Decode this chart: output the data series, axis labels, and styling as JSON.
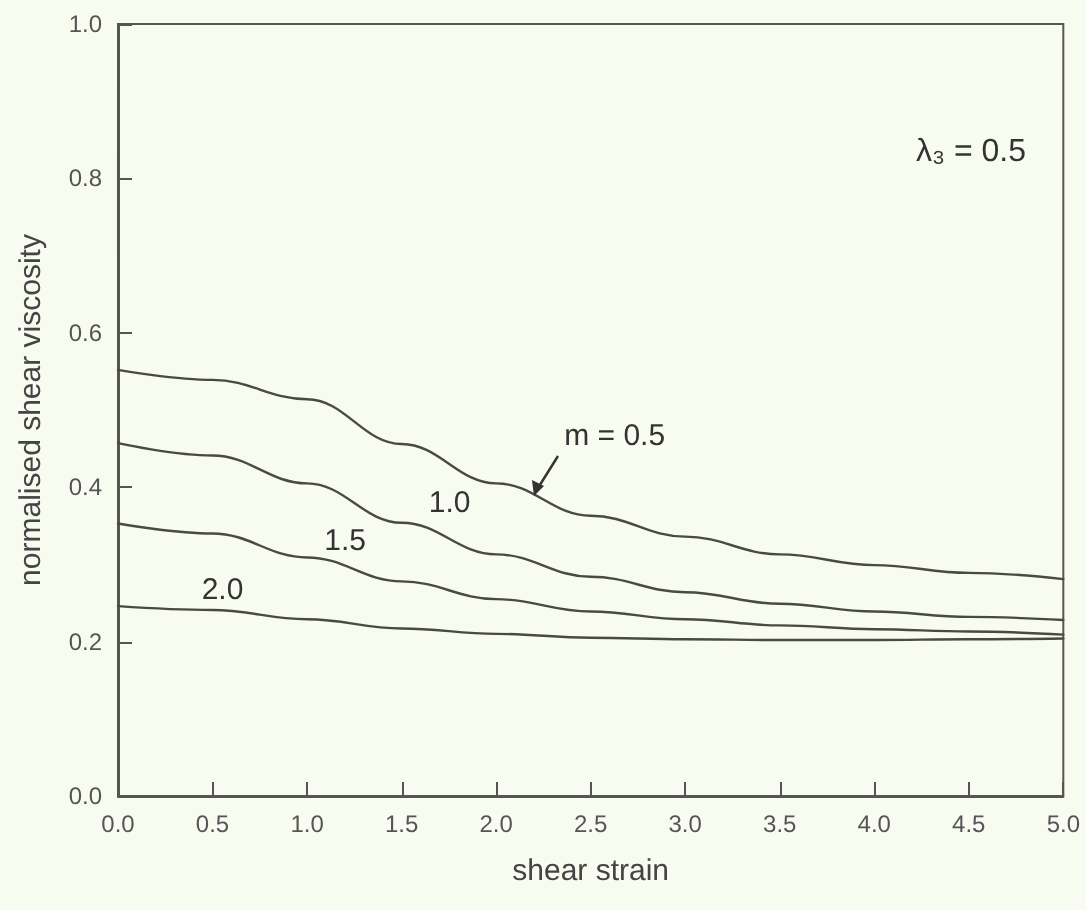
{
  "chart_data": {
    "type": "line",
    "xlabel": "shear strain",
    "ylabel": "normalised shear viscosity",
    "annotations": [
      "λ₃ = 0.5"
    ],
    "x": [
      0,
      0.5,
      1.0,
      1.5,
      2.0,
      2.5,
      3.0,
      3.5,
      4.0,
      4.5,
      5.0
    ],
    "series": [
      {
        "name": "m = 0.5",
        "color": "#4a4a44",
        "values": [
          0.552,
          0.539,
          0.514,
          0.456,
          0.405,
          0.363,
          0.336,
          0.313,
          0.299,
          0.289,
          0.281
        ]
      },
      {
        "name": "1.0",
        "color": "#4a4a44",
        "values": [
          0.457,
          0.441,
          0.405,
          0.354,
          0.313,
          0.284,
          0.264,
          0.249,
          0.239,
          0.232,
          0.228
        ]
      },
      {
        "name": "1.5",
        "color": "#4a4a44",
        "values": [
          0.353,
          0.34,
          0.309,
          0.278,
          0.255,
          0.239,
          0.229,
          0.221,
          0.216,
          0.213,
          0.209
        ]
      },
      {
        "name": "2.0",
        "color": "#4a4a44",
        "values": [
          0.246,
          0.241,
          0.229,
          0.217,
          0.21,
          0.205,
          0.203,
          0.202,
          0.202,
          0.203,
          0.204
        ]
      }
    ],
    "xlim": [
      0,
      5
    ],
    "xticks": [
      {
        "value": 0,
        "label": "0.0"
      },
      0.5,
      {
        "value": 1,
        "label": "1.0"
      },
      1.5,
      {
        "value": 2,
        "label": "2.0"
      },
      2.5,
      {
        "value": 3,
        "label": "3.0"
      },
      3.5,
      {
        "value": 4,
        "label": "4.0"
      },
      4.5,
      {
        "value": 5,
        "label": "5.0"
      }
    ],
    "ylim": [
      0,
      1
    ],
    "yticks": [
      {
        "value": 0,
        "label": "0.0"
      },
      0.2,
      0.4,
      0.6,
      0.8,
      {
        "value": 1,
        "label": "1.0"
      }
    ],
    "grid": false,
    "legend": false,
    "marker": "none",
    "line_style": "solid"
  }
}
